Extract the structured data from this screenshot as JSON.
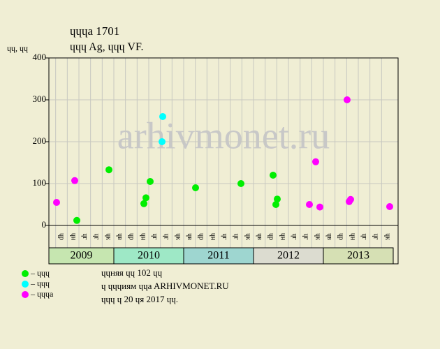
{
  "chart_data": {
    "type": "scatter",
    "title": "ɥɥɥa 1701",
    "subtitle": "ɥɥɥ Ag, ɥɥɥ VF.",
    "y_label": "ɥɥ, ɥɥ",
    "watermark": "arhivmonet.ru",
    "ylim": [
      0,
      400
    ],
    "yticks": [
      0,
      100,
      200,
      300,
      400
    ],
    "xlim": [
      2009.07,
      2014.07
    ],
    "years": [
      "2009",
      "2010",
      "2011",
      "2012",
      "2013"
    ],
    "year_colors": [
      "#c6e6b0",
      "#9ee8c6",
      "#9ed6d0",
      "#dcdcd0",
      "#d6e0b4"
    ],
    "column_labels": [
      "ɥв",
      "ɥр",
      "ɥн",
      "ɥг",
      "ɥг",
      "ɥк"
    ],
    "grid": true,
    "series": [
      {
        "name": "– ɥɥɥ",
        "color": "#00ee00",
        "x": [
          2009.47,
          2009.93,
          2010.43,
          2010.46,
          2010.52,
          2011.17,
          2011.82,
          2012.28,
          2012.32,
          2012.34
        ],
        "values": [
          12,
          133,
          52,
          66,
          105,
          90,
          100,
          120,
          50,
          63
        ]
      },
      {
        "name": "– ɥɥɥ",
        "color": "#00ffff",
        "x": [
          2010.69,
          2010.7
        ],
        "values": [
          200,
          260
        ]
      },
      {
        "name": "– ɥɥɥa",
        "color": "#ff00ff",
        "x": [
          2009.18,
          2009.44,
          2012.8,
          2012.89,
          2012.95,
          2013.34,
          2013.37,
          2013.39,
          2013.95
        ],
        "values": [
          55,
          107,
          50,
          152,
          44,
          300,
          57,
          62,
          45
        ]
      }
    ],
    "notes": [
      "ɥɥняя ɥɥ 102 ɥɥ",
      "ɥ ɥɥɥиям ɥɥa ARHIVMONET.RU",
      "ɥɥɥ ɥ 20 ɥя 2017 ɥɥ."
    ]
  }
}
